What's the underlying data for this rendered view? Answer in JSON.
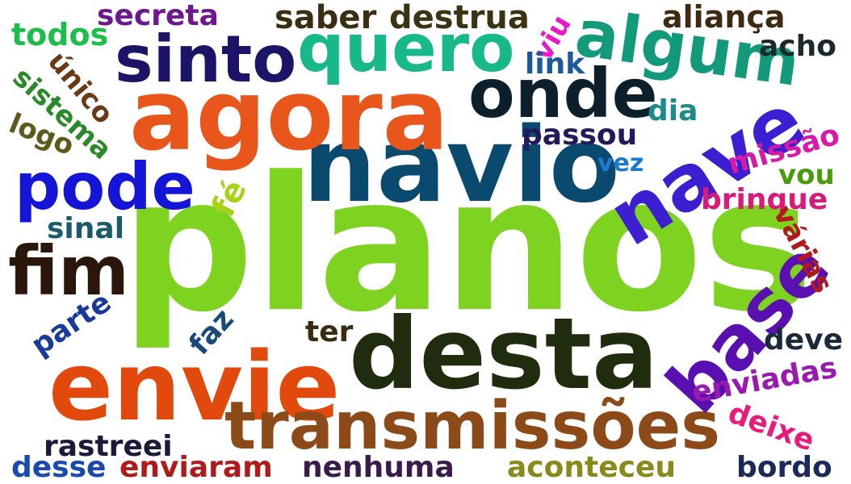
{
  "words": [
    {
      "text": "planos",
      "color": "#7ed321"
    },
    {
      "text": "navio",
      "color": "#0b4a6f"
    },
    {
      "text": "agora",
      "color": "#e8561c"
    },
    {
      "text": "desta",
      "color": "#1f2d0e"
    },
    {
      "text": "envie",
      "color": "#e24a0d"
    },
    {
      "text": "transmissões",
      "color": "#8b4a17"
    },
    {
      "text": "nave",
      "color": "#3b1fd0"
    },
    {
      "text": "base",
      "color": "#5a10b0"
    },
    {
      "text": "sinto",
      "color": "#1c1466"
    },
    {
      "text": "quero",
      "color": "#17b98a"
    },
    {
      "text": "algum",
      "color": "#129a7a"
    },
    {
      "text": "onde",
      "color": "#0d1f2a"
    },
    {
      "text": "pode",
      "color": "#1515d8"
    },
    {
      "text": "fim",
      "color": "#2a160b"
    },
    {
      "text": "secreta",
      "color": "#6d1790"
    },
    {
      "text": "saber",
      "color": "#3a2e12"
    },
    {
      "text": "destrua",
      "color": "#3a3414"
    },
    {
      "text": "aliança",
      "color": "#3d2a10"
    },
    {
      "text": "acho",
      "color": "#1a2a2a"
    },
    {
      "text": "todos",
      "color": "#1dbd4a"
    },
    {
      "text": "viu",
      "color": "#e81ac8"
    },
    {
      "text": "link",
      "color": "#1d5a9a"
    },
    {
      "text": "único",
      "color": "#6a3a18"
    },
    {
      "text": "sistema",
      "color": "#2a8a2a"
    },
    {
      "text": "logo",
      "color": "#5c5a1a"
    },
    {
      "text": "dia",
      "color": "#1a8a8a"
    },
    {
      "text": "passou",
      "color": "#221a5a"
    },
    {
      "text": "missão",
      "color": "#d61aa8"
    },
    {
      "text": "vez",
      "color": "#1a7ad0"
    },
    {
      "text": "vou",
      "color": "#4a9a0d"
    },
    {
      "text": "fé",
      "color": "#a8d21a"
    },
    {
      "text": "brinque",
      "color": "#d81a7a"
    },
    {
      "text": "sinal",
      "color": "#1a5a6a"
    },
    {
      "text": "várias",
      "color": "#b01a1a"
    },
    {
      "text": "parte",
      "color": "#1a3a9a"
    },
    {
      "text": "faz",
      "color": "#1a4a7a"
    },
    {
      "text": "ter",
      "color": "#3a2a10"
    },
    {
      "text": "deve",
      "color": "#1a2a3a"
    },
    {
      "text": "enviadas",
      "color": "#9a1ab0"
    },
    {
      "text": "deixe",
      "color": "#e81a7a"
    },
    {
      "text": "rastreei",
      "color": "#1a1a3a"
    },
    {
      "text": "desse",
      "color": "#1a4ab0"
    },
    {
      "text": "enviaram",
      "color": "#b01a1a"
    },
    {
      "text": "nenhuma",
      "color": "#3a1a4a"
    },
    {
      "text": "aconteceu",
      "color": "#8a8a1a"
    },
    {
      "text": "bordo",
      "color": "#1a2a5a"
    }
  ]
}
